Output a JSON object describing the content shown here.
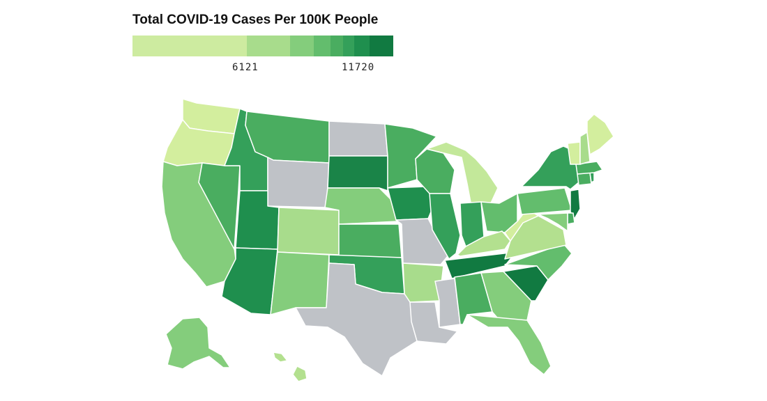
{
  "legend": {
    "title": "Total COVID-19 Cases Per 100K People",
    "tick_labels": [
      "6121",
      "11720"
    ],
    "bins": [
      "#cdeba0",
      "#a8dc8c",
      "#84cd7c",
      "#63bd6d",
      "#4aad60",
      "#34a05a",
      "#1f8f4e",
      "#117a41"
    ]
  },
  "no_data_color": "#bfc2c7",
  "map": {
    "type": "choropleth",
    "region": "United States",
    "states": {
      "WA": "#d3ee9e",
      "OR": "#d3ee9e",
      "CA": "#84cd7c",
      "NV": "#4aad60",
      "ID": "#34a05a",
      "MT": "#4aad60",
      "WY": "#bfc2c7",
      "UT": "#1f8f4e",
      "AZ": "#1f8f4e",
      "CO": "#a8dc8c",
      "NM": "#84cd7c",
      "ND": "#bfc2c7",
      "SD": "#1a8448",
      "NE": "#84cd7c",
      "KS": "#4aad60",
      "OK": "#34a05a",
      "TX": "#bfc2c7",
      "MN": "#4aad60",
      "IA": "#1f8f4e",
      "MO": "#bfc2c7",
      "AR": "#a8dc8c",
      "LA": "#bfc2c7",
      "MS": "#bfc2c7",
      "WI": "#4aad60",
      "IL": "#34a05a",
      "MI": "#c3e89a",
      "IN": "#34a05a",
      "OH": "#63bd6d",
      "KY": "#b3e08f",
      "TN": "#117a41",
      "AL": "#4aad60",
      "GA": "#84cd7c",
      "FL": "#84cd7c",
      "SC": "#117a41",
      "NC": "#63bd6d",
      "VA": "#b3e08f",
      "WV": "#d3ee9e",
      "PA": "#63bd6d",
      "NY": "#34a05a",
      "NJ": "#117a41",
      "DE": "#4aad60",
      "MD": "#84cd7c",
      "CT": "#4aad60",
      "RI": "#34a05a",
      "MA": "#4aad60",
      "VT": "#d3ee9e",
      "NH": "#a8dc8c",
      "ME": "#d3ee9e",
      "AK": "#84cd7c",
      "HI": "#b3e08f"
    }
  }
}
